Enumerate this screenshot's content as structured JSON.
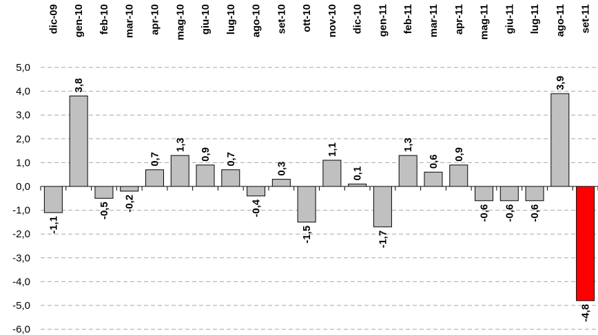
{
  "chart_data": {
    "type": "bar",
    "title": "",
    "xlabel": "",
    "ylabel": "",
    "categories": [
      "dic-09",
      "gen-10",
      "feb-10",
      "mar-10",
      "apr-10",
      "mag-10",
      "giu-10",
      "lug-10",
      "ago-10",
      "set-10",
      "ott-10",
      "nov-10",
      "dic-10",
      "gen-11",
      "feb-11",
      "mar-11",
      "apr-11",
      "mag-11",
      "giu-11",
      "lug-11",
      "ago-11",
      "set-11"
    ],
    "values": [
      -1.1,
      3.8,
      -0.5,
      -0.2,
      0.7,
      1.3,
      0.9,
      0.7,
      -0.4,
      0.3,
      -1.5,
      1.1,
      0.1,
      -1.7,
      1.3,
      0.6,
      0.9,
      -0.6,
      -0.6,
      -0.6,
      3.9,
      -4.8
    ],
    "value_labels": [
      "-1,1",
      "3,8",
      "-0,5",
      "-0,2",
      "0,7",
      "1,3",
      "0,9",
      "0,7",
      "-0,4",
      "0,3",
      "-1,5",
      "1,1",
      "0,1",
      "-1,7",
      "1,3",
      "0,6",
      "0,9",
      "-0,6",
      "-0,6",
      "-0,6",
      "3,9",
      "-4,8"
    ],
    "ylim": [
      -6,
      5
    ],
    "yticks": [
      5,
      4,
      3,
      2,
      1,
      0,
      -1,
      -2,
      -3,
      -4,
      -5,
      -6
    ],
    "ytick_labels": [
      "5,0",
      "4,0",
      "3,0",
      "2,0",
      "1,0",
      "0,0",
      "-1,0",
      "-2,0",
      "-3,0",
      "-4,0",
      "-5,0",
      "-6,0"
    ],
    "grid": true,
    "legend": "none",
    "colors": {
      "default_bar": "#c0c0c0",
      "highlight_bar": "#ff0000",
      "bar_outline": "#000000",
      "grid": "#a6a6a6"
    },
    "highlight_index": 21
  }
}
